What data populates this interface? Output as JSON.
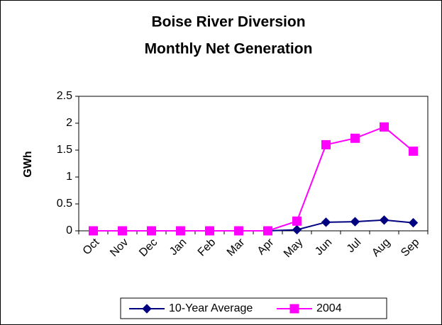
{
  "chart_data": {
    "type": "line",
    "title": "Boise River Diversion",
    "subtitle": "Monthly Net Generation",
    "y_label": "GWh",
    "categories": [
      "Oct",
      "Nov",
      "Dec",
      "Jan",
      "Feb",
      "Mar",
      "Apr",
      "May",
      "Jun",
      "Jul",
      "Aug",
      "Sep"
    ],
    "series": [
      {
        "name": "10-Year Average",
        "color": "#000080",
        "marker": "diamond",
        "values": [
          0,
          0,
          0,
          0,
          0,
          0,
          0,
          0.02,
          0.16,
          0.17,
          0.2,
          0.15
        ]
      },
      {
        "name": "2004",
        "color": "#ff00ff",
        "marker": "square",
        "values": [
          0,
          0,
          0,
          0,
          0,
          0,
          0,
          0.18,
          1.6,
          1.72,
          1.93,
          1.48
        ]
      }
    ],
    "ylim": [
      0,
      2.5
    ],
    "yticks": [
      0,
      0.5,
      1,
      1.5,
      2,
      2.5
    ],
    "grid": false,
    "legend": "bottom"
  }
}
